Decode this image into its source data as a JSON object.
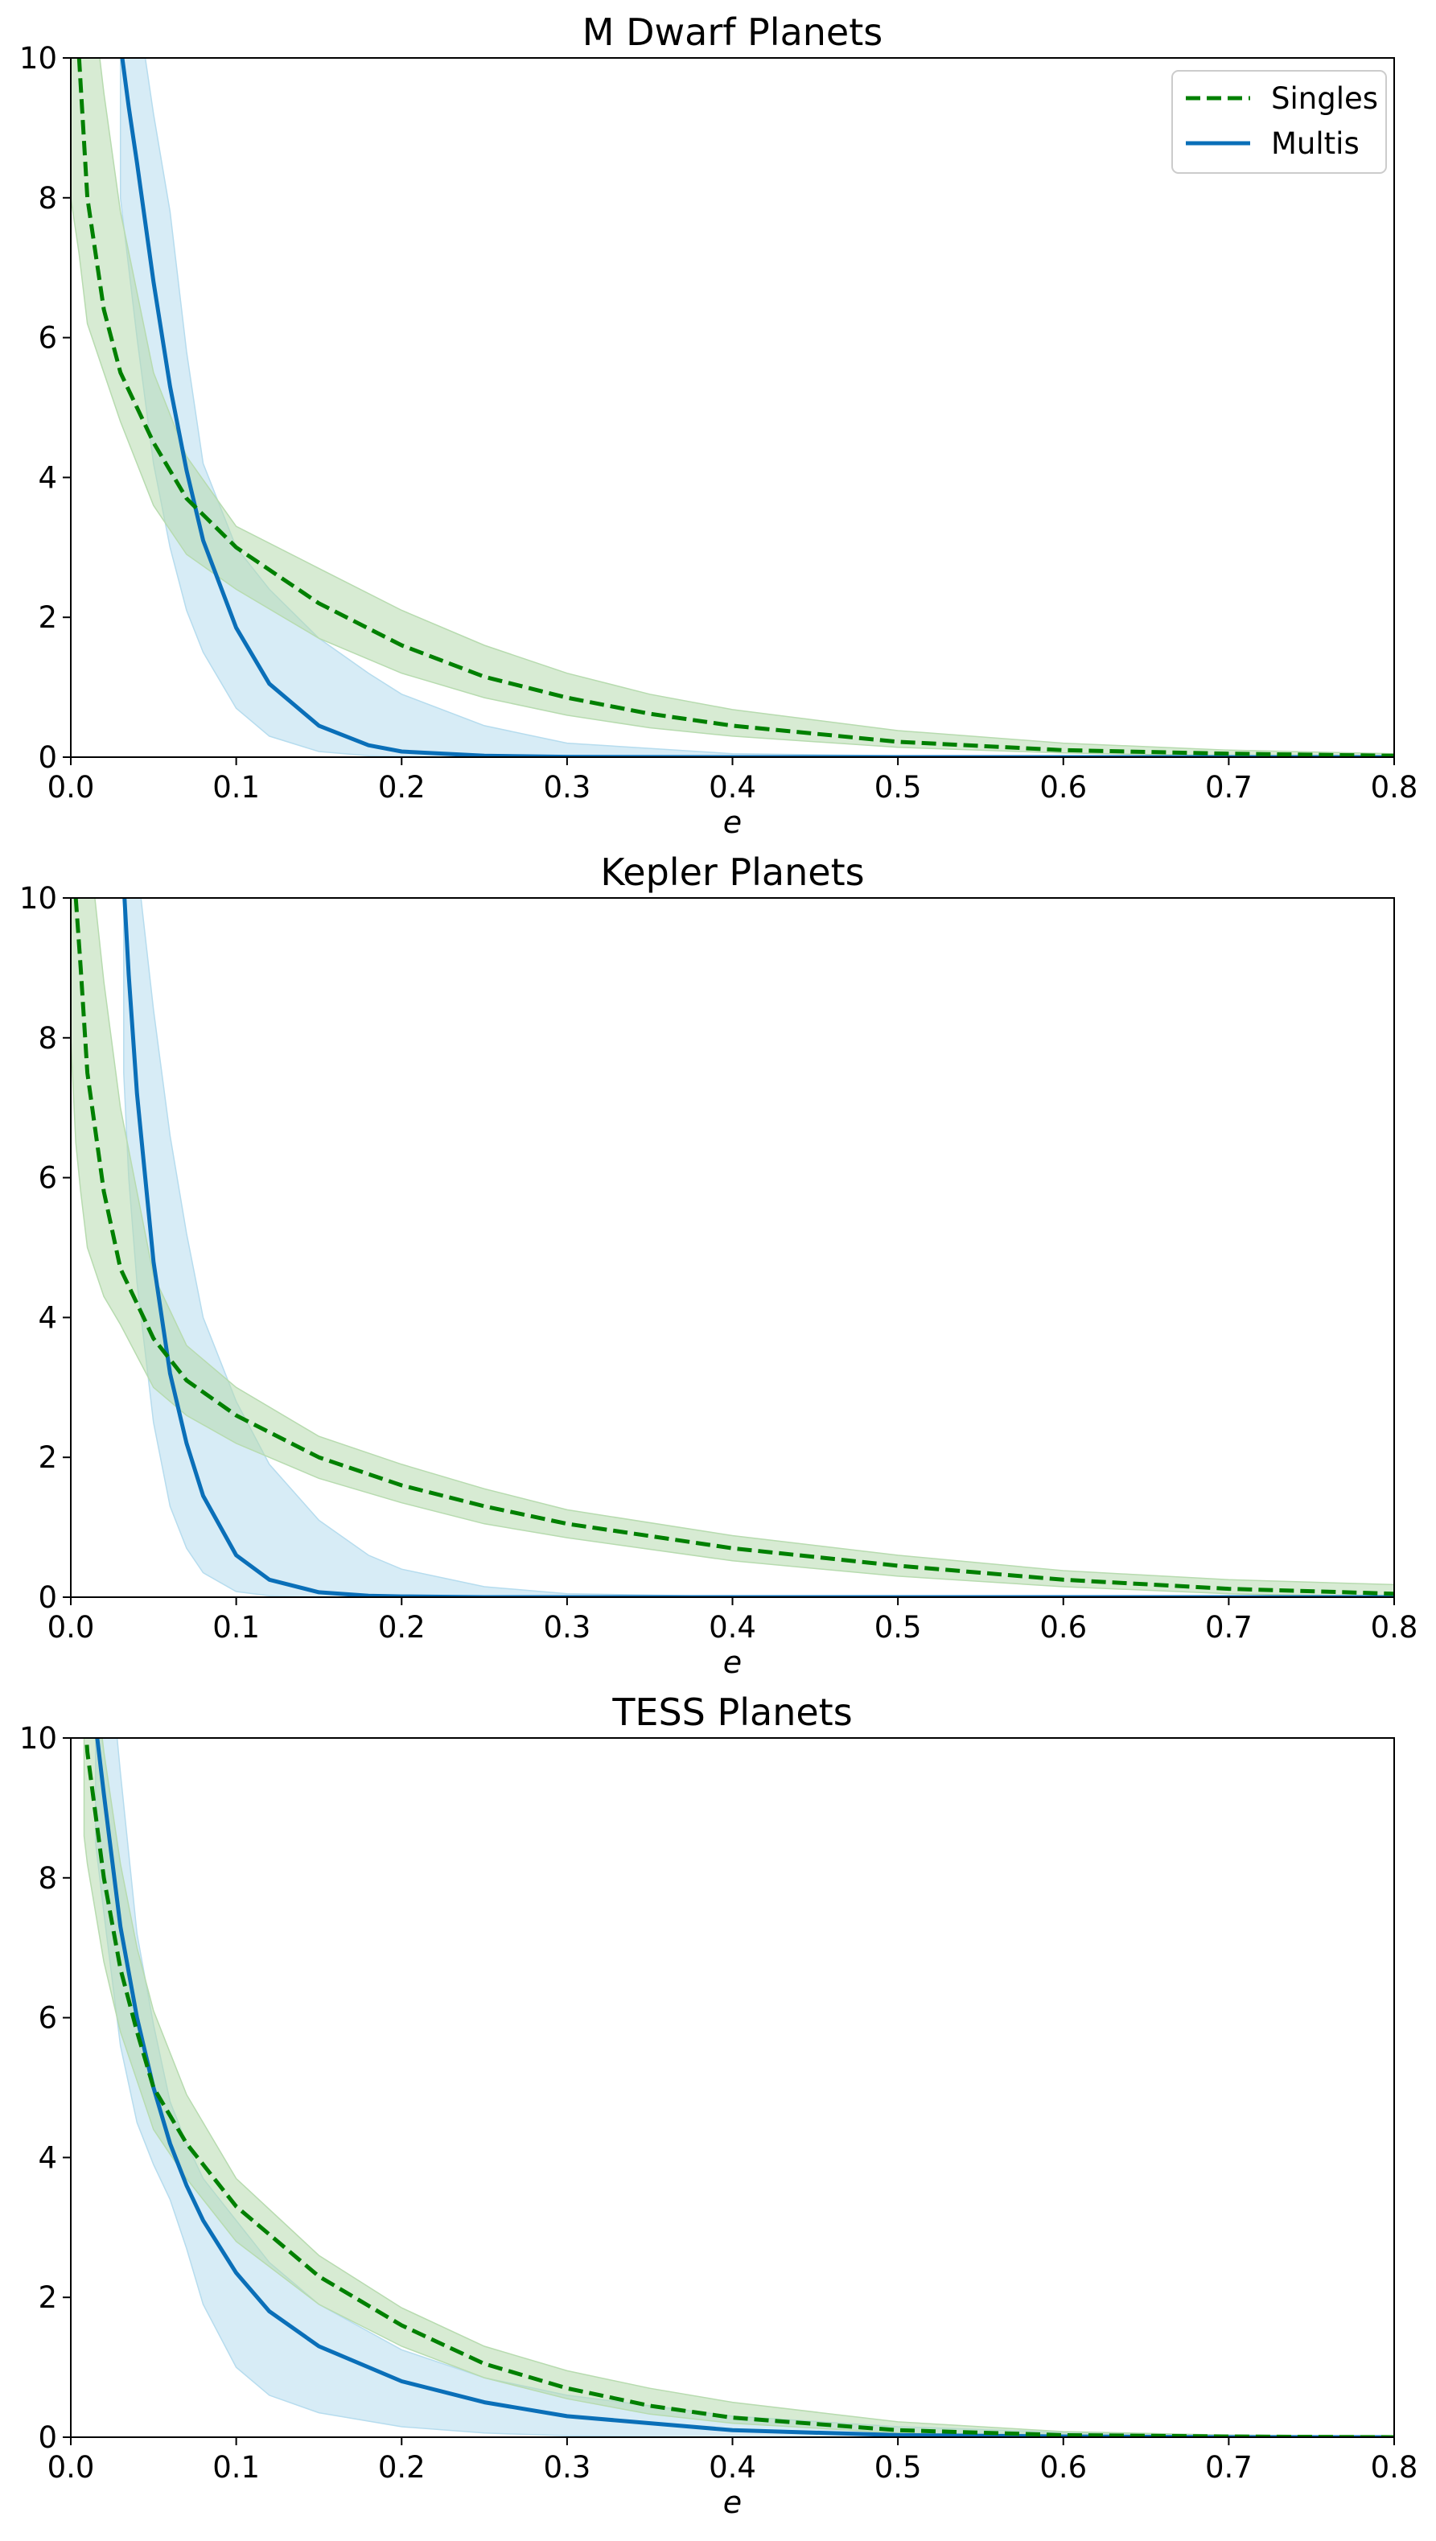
{
  "colors": {
    "singles_line": "#008000",
    "singles_band": "#b7dbaf",
    "multis_line": "#0a6fb8",
    "multis_band": "#b6dcee"
  },
  "legend": {
    "singles_label": "Singles",
    "multis_label": "Multis",
    "placement": "top-right"
  },
  "chart_data": [
    {
      "type": "line",
      "title": "M Dwarf Planets",
      "xlabel": "e",
      "ylabel": "",
      "xlim": [
        0.0,
        0.8
      ],
      "ylim": [
        0,
        10
      ],
      "xticks": [
        "0.0",
        "0.1",
        "0.2",
        "0.3",
        "0.4",
        "0.5",
        "0.6",
        "0.7",
        "0.8"
      ],
      "yticks": [
        "0",
        "2",
        "4",
        "6",
        "8",
        "10"
      ],
      "grid": false,
      "legend_shown": true,
      "series": [
        {
          "name": "Singles",
          "style": "dashed",
          "x": [
            0.0,
            0.005,
            0.01,
            0.02,
            0.03,
            0.05,
            0.07,
            0.1,
            0.15,
            0.2,
            0.25,
            0.3,
            0.35,
            0.4,
            0.5,
            0.6,
            0.7,
            0.8
          ],
          "y": [
            11.5,
            10.0,
            8.0,
            6.4,
            5.5,
            4.5,
            3.7,
            3.0,
            2.2,
            1.6,
            1.15,
            0.85,
            0.62,
            0.45,
            0.22,
            0.1,
            0.05,
            0.02
          ],
          "lower": [
            8.0,
            7.2,
            6.2,
            5.5,
            4.8,
            3.6,
            2.9,
            2.4,
            1.7,
            1.2,
            0.85,
            0.6,
            0.42,
            0.3,
            0.14,
            0.06,
            0.02,
            0.0
          ],
          "upper": [
            14.0,
            13.0,
            11.5,
            9.5,
            7.8,
            5.5,
            4.3,
            3.3,
            2.7,
            2.1,
            1.6,
            1.2,
            0.9,
            0.68,
            0.38,
            0.2,
            0.1,
            0.05
          ]
        },
        {
          "name": "Multis",
          "style": "solid",
          "x": [
            0.03,
            0.035,
            0.04,
            0.05,
            0.06,
            0.07,
            0.08,
            0.1,
            0.12,
            0.15,
            0.18,
            0.2,
            0.25,
            0.3,
            0.4,
            0.5,
            0.6,
            0.7,
            0.8
          ],
          "y": [
            10.2,
            9.3,
            8.5,
            6.8,
            5.3,
            4.1,
            3.1,
            1.85,
            1.05,
            0.45,
            0.17,
            0.08,
            0.02,
            0.005,
            0.0,
            0.0,
            0.0,
            0.0,
            0.0
          ],
          "lower": [
            8.0,
            7.0,
            6.0,
            4.2,
            3.0,
            2.1,
            1.5,
            0.7,
            0.3,
            0.08,
            0.02,
            0.01,
            0.0,
            0.0,
            0.0,
            0.0,
            0.0,
            0.0,
            0.0
          ],
          "upper": [
            12.0,
            11.5,
            10.8,
            9.2,
            7.8,
            5.8,
            4.2,
            3.0,
            2.4,
            1.7,
            1.2,
            0.9,
            0.45,
            0.2,
            0.05,
            0.02,
            0.01,
            0.0,
            0.0
          ]
        }
      ]
    },
    {
      "type": "line",
      "title": "Kepler Planets",
      "xlabel": "e",
      "ylabel": "",
      "xlim": [
        0.0,
        0.8
      ],
      "ylim": [
        0,
        10
      ],
      "xticks": [
        "0.0",
        "0.1",
        "0.2",
        "0.3",
        "0.4",
        "0.5",
        "0.6",
        "0.7",
        "0.8"
      ],
      "yticks": [
        "0",
        "2",
        "4",
        "6",
        "8",
        "10"
      ],
      "grid": false,
      "legend_shown": false,
      "series": [
        {
          "name": "Singles",
          "style": "dashed",
          "x": [
            0.0,
            0.003,
            0.006,
            0.01,
            0.02,
            0.03,
            0.05,
            0.07,
            0.1,
            0.15,
            0.2,
            0.25,
            0.3,
            0.4,
            0.5,
            0.6,
            0.7,
            0.8
          ],
          "y": [
            11.5,
            10.0,
            9.0,
            7.5,
            5.8,
            4.7,
            3.7,
            3.1,
            2.6,
            2.0,
            1.6,
            1.3,
            1.05,
            0.7,
            0.45,
            0.25,
            0.12,
            0.05
          ],
          "lower": [
            8.0,
            6.5,
            5.8,
            5.0,
            4.3,
            3.9,
            3.0,
            2.6,
            2.2,
            1.7,
            1.35,
            1.05,
            0.85,
            0.52,
            0.3,
            0.15,
            0.05,
            0.0
          ],
          "upper": [
            14.0,
            13.5,
            12.5,
            11.0,
            8.8,
            7.0,
            4.6,
            3.6,
            3.0,
            2.3,
            1.9,
            1.55,
            1.25,
            0.88,
            0.6,
            0.38,
            0.25,
            0.18
          ]
        },
        {
          "name": "Multis",
          "style": "solid",
          "x": [
            0.032,
            0.035,
            0.04,
            0.05,
            0.06,
            0.07,
            0.08,
            0.1,
            0.12,
            0.15,
            0.18,
            0.2,
            0.25,
            0.3,
            0.4,
            0.5,
            0.6,
            0.7,
            0.8
          ],
          "y": [
            10.2,
            8.9,
            7.2,
            4.8,
            3.2,
            2.2,
            1.45,
            0.6,
            0.25,
            0.07,
            0.02,
            0.01,
            0.0,
            0.0,
            0.0,
            0.0,
            0.0,
            0.0,
            0.0
          ],
          "lower": [
            7.5,
            6.0,
            4.5,
            2.5,
            1.3,
            0.7,
            0.35,
            0.08,
            0.02,
            0.0,
            0.0,
            0.0,
            0.0,
            0.0,
            0.0,
            0.0,
            0.0,
            0.0,
            0.0
          ],
          "upper": [
            12.0,
            11.5,
            10.5,
            8.4,
            6.6,
            5.2,
            4.0,
            2.8,
            1.9,
            1.1,
            0.6,
            0.4,
            0.15,
            0.05,
            0.01,
            0.0,
            0.0,
            0.0,
            0.0
          ]
        }
      ]
    },
    {
      "type": "line",
      "title": "TESS Planets",
      "xlabel": "e",
      "ylabel": "",
      "xlim": [
        0.0,
        0.8
      ],
      "ylim": [
        0,
        10
      ],
      "xticks": [
        "0.0",
        "0.1",
        "0.2",
        "0.3",
        "0.4",
        "0.5",
        "0.6",
        "0.7",
        "0.8"
      ],
      "yticks": [
        "0",
        "2",
        "4",
        "6",
        "8",
        "10"
      ],
      "grid": false,
      "legend_shown": false,
      "series": [
        {
          "name": "Singles",
          "style": "dashed",
          "x": [
            0.008,
            0.01,
            0.02,
            0.03,
            0.04,
            0.05,
            0.07,
            0.1,
            0.15,
            0.2,
            0.25,
            0.3,
            0.35,
            0.4,
            0.5,
            0.6,
            0.7,
            0.8
          ],
          "y": [
            10.5,
            9.8,
            8.0,
            6.7,
            5.8,
            5.0,
            4.2,
            3.3,
            2.3,
            1.6,
            1.05,
            0.7,
            0.45,
            0.28,
            0.1,
            0.03,
            0.01,
            0.0
          ],
          "lower": [
            8.6,
            8.2,
            6.8,
            5.8,
            5.1,
            4.4,
            3.7,
            2.8,
            1.9,
            1.3,
            0.85,
            0.55,
            0.33,
            0.2,
            0.06,
            0.01,
            0.0,
            0.0
          ],
          "upper": [
            12.5,
            11.8,
            9.8,
            8.2,
            7.0,
            6.1,
            4.9,
            3.7,
            2.6,
            1.85,
            1.3,
            0.95,
            0.7,
            0.5,
            0.22,
            0.08,
            0.03,
            0.01
          ]
        },
        {
          "name": "Multis",
          "style": "solid",
          "x": [
            0.015,
            0.02,
            0.03,
            0.04,
            0.05,
            0.06,
            0.07,
            0.08,
            0.1,
            0.12,
            0.15,
            0.2,
            0.25,
            0.3,
            0.4,
            0.5,
            0.6,
            0.7,
            0.8
          ],
          "y": [
            10.2,
            9.2,
            7.3,
            6.0,
            5.0,
            4.2,
            3.6,
            3.1,
            2.35,
            1.8,
            1.3,
            0.8,
            0.5,
            0.3,
            0.1,
            0.03,
            0.01,
            0.0,
            0.0
          ],
          "lower": [
            8.5,
            7.5,
            5.6,
            4.5,
            3.9,
            3.4,
            2.7,
            1.9,
            1.0,
            0.6,
            0.35,
            0.15,
            0.06,
            0.02,
            0.0,
            0.0,
            0.0,
            0.0,
            0.0
          ],
          "upper": [
            13.0,
            12.0,
            9.5,
            7.2,
            5.9,
            4.8,
            4.2,
            3.7,
            3.1,
            2.5,
            1.9,
            1.25,
            0.85,
            0.6,
            0.3,
            0.15,
            0.07,
            0.03,
            0.01
          ]
        }
      ]
    }
  ]
}
